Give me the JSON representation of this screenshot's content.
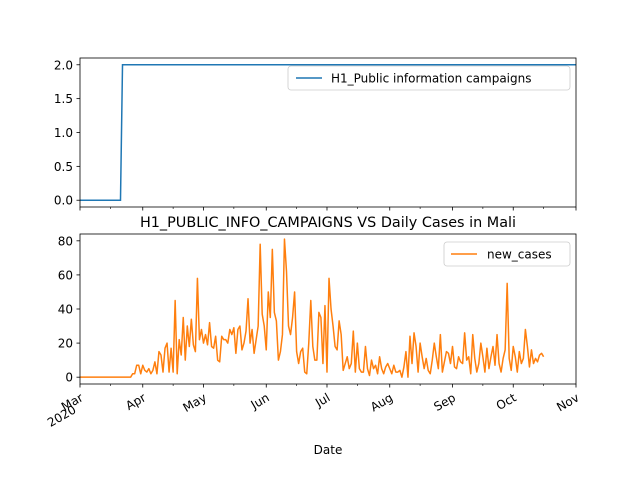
{
  "chart_data": [
    {
      "type": "line",
      "title": "",
      "xlabel": "",
      "ylabel": "",
      "ylim": [
        -0.1,
        2.1
      ],
      "xlim": [
        "2020-03-01",
        "2020-11-01"
      ],
      "yticks": [
        0.0,
        0.5,
        1.0,
        1.5,
        2.0
      ],
      "ytick_labels": [
        "0.0",
        "0.5",
        "1.0",
        "1.5",
        "2.0"
      ],
      "legend_position": "top-right",
      "series": [
        {
          "name": "H1_Public information campaigns",
          "color": "#1f77b4",
          "x": [
            "2020-03-01",
            "2020-03-21",
            "2020-03-22",
            "2020-11-01"
          ],
          "values": [
            0,
            0,
            2,
            2
          ]
        }
      ]
    },
    {
      "type": "line",
      "title": "H1_PUBLIC_INFO_CAMPAIGNS VS Daily Cases in Mali",
      "xlabel": "Date",
      "ylabel": "",
      "ylim": [
        -4,
        84
      ],
      "xlim": [
        "2020-03-01",
        "2020-11-01"
      ],
      "yticks": [
        0,
        20,
        40,
        60,
        80
      ],
      "ytick_labels": [
        "0",
        "20",
        "40",
        "60",
        "80"
      ],
      "legend_position": "top-right",
      "x_start": "2020-03-01",
      "x_step": "1 day",
      "series": [
        {
          "name": "new_cases",
          "color": "#ff7f0e",
          "values": [
            0,
            0,
            0,
            0,
            0,
            0,
            0,
            0,
            0,
            0,
            0,
            0,
            0,
            0,
            0,
            0,
            0,
            0,
            0,
            0,
            0,
            0,
            0,
            0,
            0,
            0,
            2,
            2,
            7,
            7,
            2,
            7,
            4,
            3,
            5,
            2,
            4,
            9,
            2,
            15,
            13,
            3,
            17,
            20,
            3,
            17,
            3,
            45,
            2,
            22,
            13,
            35,
            10,
            30,
            18,
            34,
            19,
            15,
            58,
            22,
            28,
            20,
            25,
            19,
            32,
            18,
            17,
            24,
            10,
            9,
            24,
            22,
            22,
            20,
            28,
            25,
            29,
            14,
            28,
            30,
            16,
            20,
            27,
            46,
            20,
            28,
            14,
            22,
            30,
            78,
            37,
            30,
            16,
            50,
            35,
            75,
            38,
            33,
            10,
            15,
            25,
            81,
            62,
            30,
            25,
            35,
            50,
            15,
            8,
            15,
            17,
            3,
            2,
            20,
            45,
            18,
            10,
            10,
            38,
            35,
            8,
            42,
            3,
            58,
            40,
            30,
            18,
            16,
            33,
            25,
            4,
            8,
            12,
            5,
            8,
            27,
            3,
            20,
            5,
            3,
            3,
            18,
            5,
            1,
            10,
            5,
            7,
            2,
            12,
            5,
            2,
            6,
            8,
            5,
            2,
            7,
            3,
            3,
            4,
            0,
            6,
            15,
            0,
            24,
            8,
            26,
            18,
            3,
            20,
            12,
            5,
            11,
            4,
            2,
            10,
            20,
            12,
            5,
            25,
            3,
            9,
            15,
            14,
            8,
            18,
            6,
            5,
            12,
            9,
            8,
            26,
            10,
            12,
            2,
            25,
            11,
            3,
            8,
            20,
            12,
            3,
            17,
            5,
            12,
            18,
            7,
            25,
            8,
            3,
            11,
            16,
            55,
            11,
            4,
            18,
            12,
            3,
            15,
            8,
            11,
            28,
            18,
            6,
            16,
            8,
            11,
            9,
            13,
            14,
            12
          ]
        }
      ]
    }
  ],
  "x_axis": {
    "tick_labels": [
      [
        "Mar",
        "2020"
      ],
      [
        "Apr"
      ],
      [
        "May"
      ],
      [
        "Jun"
      ],
      [
        "Jul"
      ],
      [
        "Aug"
      ],
      [
        "Sep"
      ],
      [
        "Oct"
      ],
      [
        "Nov"
      ]
    ],
    "tick_dates": [
      "2020-03-01",
      "2020-04-01",
      "2020-05-01",
      "2020-06-01",
      "2020-07-01",
      "2020-08-01",
      "2020-09-01",
      "2020-10-01",
      "2020-11-01"
    ]
  }
}
